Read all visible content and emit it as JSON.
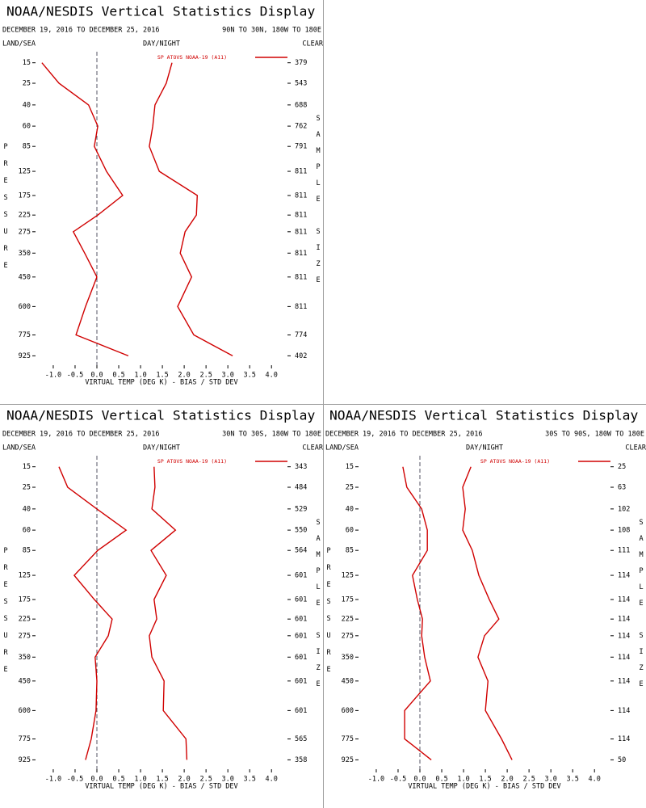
{
  "chart_data": [
    {
      "type": "line",
      "title": "NOAA/NESDIS Vertical Statistics Display",
      "subtitle": "DECEMBER 19, 2016 TO DECEMBER 25, 2016",
      "region": "90N TO 30N, 180W TO 180E",
      "left_label": "LAND/SEA",
      "center_label": "DAY/NIGHT",
      "right_label": "CLEAR",
      "ylabel": "PRESSURE",
      "y2label": "SAMPLE SIZE",
      "xlabel": "VIRTUAL TEMP (DEG K) - BIAS / STD DEV",
      "y": [
        15,
        25,
        40,
        60,
        85,
        125,
        175,
        225,
        275,
        350,
        450,
        600,
        775,
        925
      ],
      "sample_sizes": [
        379,
        543,
        688,
        762,
        791,
        811,
        811,
        811,
        811,
        811,
        811,
        811,
        774,
        402
      ],
      "series": [
        {
          "name": "SP ATOVS NOAA-19 (A11)",
          "color": "#d00000",
          "values": [
            -1.26,
            -0.87,
            -0.19,
            0.02,
            -0.06,
            0.22,
            0.59,
            0.02,
            -0.54,
            -0.28,
            0.0,
            -0.26,
            -0.48,
            0.72
          ],
          "std_dev": [
            1.72,
            1.59,
            1.33,
            1.28,
            1.2,
            1.43,
            2.3,
            2.28,
            2.02,
            1.91,
            2.17,
            1.85,
            2.22,
            3.11
          ]
        }
      ],
      "xlim": [
        -1.48,
        4.44
      ],
      "xticks": [
        {
          "value": -1,
          "label": "-1.0"
        },
        -0.5,
        {
          "value": 0,
          "label": "0.0"
        },
        0.5,
        {
          "value": 1,
          "label": "1.0"
        },
        1.5,
        {
          "value": 2,
          "label": "2.0"
        },
        2.5,
        {
          "value": 3,
          "label": "3.0"
        },
        3.5,
        {
          "value": 4,
          "label": "4.0"
        }
      ],
      "ylim": [
        11,
        1025
      ],
      "yscale": "power",
      "yscale_exponent": 0.286,
      "zero_line": "dashed",
      "legend": "top-right"
    },
    {
      "type": "line",
      "title": "NOAA/NESDIS Vertical Statistics Display",
      "subtitle": "DECEMBER 19, 2016 TO DECEMBER 25, 2016",
      "region": "30N TO 30S, 180W TO 180E",
      "left_label": "LAND/SEA",
      "center_label": "DAY/NIGHT",
      "right_label": "CLEAR",
      "ylabel": "PRESSURE",
      "y2label": "SAMPLE SIZE",
      "xlabel": "VIRTUAL TEMP (DEG K) - BIAS / STD DEV",
      "y": [
        15,
        25,
        40,
        60,
        85,
        125,
        175,
        225,
        275,
        350,
        450,
        600,
        775,
        925
      ],
      "sample_sizes": [
        343,
        484,
        529,
        550,
        564,
        601,
        601,
        601,
        601,
        601,
        601,
        601,
        565,
        358
      ],
      "series": [
        {
          "name": "SP ATOVS NOAA-19 (A11)",
          "color": "#d00000",
          "values": [
            -0.87,
            -0.67,
            0.0,
            0.67,
            0.02,
            -0.52,
            -0.06,
            0.35,
            0.26,
            -0.04,
            0.0,
            -0.02,
            -0.13,
            -0.26
          ],
          "std_dev": [
            1.31,
            1.33,
            1.26,
            1.8,
            1.24,
            1.59,
            1.31,
            1.37,
            1.2,
            1.26,
            1.54,
            1.52,
            2.04,
            2.06
          ]
        }
      ],
      "xlim": [
        -1.48,
        4.44
      ],
      "xticks": [
        {
          "value": -1,
          "label": "-1.0"
        },
        -0.5,
        {
          "value": 0,
          "label": "0.0"
        },
        0.5,
        {
          "value": 1,
          "label": "1.0"
        },
        1.5,
        {
          "value": 2,
          "label": "2.0"
        },
        2.5,
        {
          "value": 3,
          "label": "3.0"
        },
        3.5,
        {
          "value": 4,
          "label": "4.0"
        }
      ],
      "ylim": [
        11,
        1025
      ],
      "yscale": "power",
      "yscale_exponent": 0.286,
      "zero_line": "dashed",
      "legend": "top-right"
    },
    {
      "type": "line",
      "title": "NOAA/NESDIS Vertical Statistics Display",
      "subtitle": "DECEMBER 19, 2016 TO DECEMBER 25, 2016",
      "region": "30S TO 90S, 180W TO 180E",
      "left_label": "LAND/SEA",
      "center_label": "DAY/NIGHT",
      "right_label": "CLEAR",
      "ylabel": "PRESSURE",
      "y2label": "SAMPLE SIZE",
      "xlabel": "VIRTUAL TEMP (DEG K) - BIAS / STD DEV",
      "y": [
        15,
        25,
        40,
        60,
        85,
        125,
        175,
        225,
        275,
        350,
        450,
        600,
        775,
        925
      ],
      "sample_sizes": [
        25,
        63,
        102,
        108,
        111,
        114,
        114,
        114,
        114,
        114,
        114,
        114,
        114,
        50
      ],
      "series": [
        {
          "name": "SP ATOVS NOAA-19 (A11)",
          "color": "#d00000",
          "values": [
            -0.39,
            -0.3,
            0.04,
            0.17,
            0.17,
            -0.17,
            -0.06,
            0.06,
            0.04,
            0.11,
            0.24,
            -0.35,
            -0.35,
            0.26
          ],
          "std_dev": [
            1.17,
            0.98,
            1.04,
            0.98,
            1.2,
            1.35,
            1.59,
            1.81,
            1.48,
            1.33,
            1.56,
            1.5,
            1.87,
            2.11
          ]
        }
      ],
      "xlim": [
        -1.48,
        4.44
      ],
      "xticks": [
        {
          "value": -1,
          "label": "-1.0"
        },
        -0.5,
        {
          "value": 0,
          "label": "0.0"
        },
        0.5,
        {
          "value": 1,
          "label": "1.0"
        },
        1.5,
        {
          "value": 2,
          "label": "2.0"
        },
        2.5,
        {
          "value": 3,
          "label": "3.0"
        },
        3.5,
        {
          "value": 4,
          "label": "4.0"
        }
      ],
      "ylim": [
        11,
        1025
      ],
      "yscale": "power",
      "yscale_exponent": 0.286,
      "zero_line": "dashed",
      "legend": "top-right"
    }
  ]
}
